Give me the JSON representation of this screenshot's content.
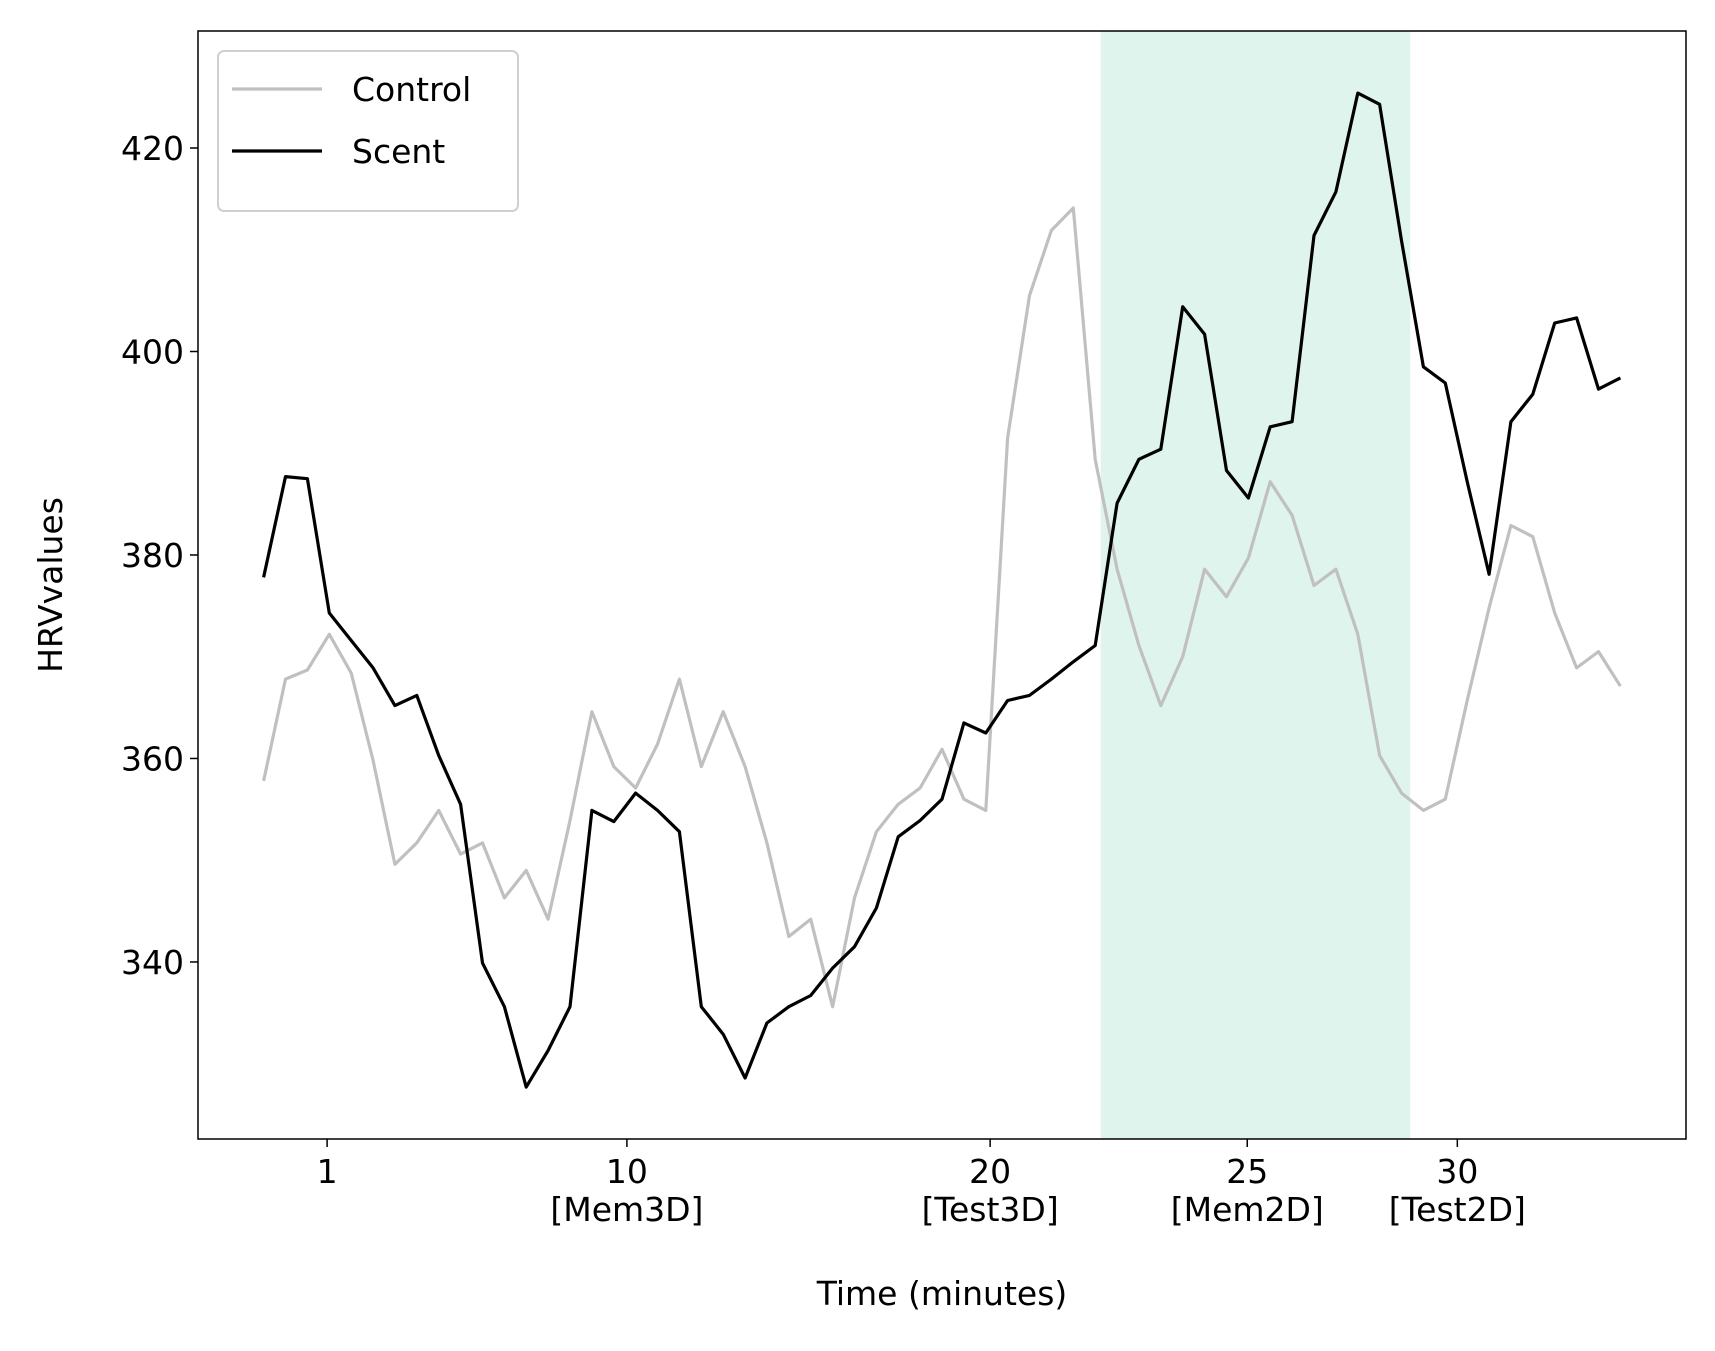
{
  "chart_data": {
    "type": "line",
    "xlabel": "Time (minutes)",
    "ylabel": "HRVvalues",
    "x": [
      6,
      8,
      10,
      12,
      14,
      16,
      18,
      20,
      22,
      24,
      26,
      28,
      30,
      32,
      34,
      36,
      38,
      40,
      42,
      44,
      46,
      48,
      50,
      52,
      54,
      56,
      58,
      60,
      62,
      64,
      66,
      68,
      70,
      72,
      74,
      76,
      78,
      80,
      82,
      84,
      86,
      88,
      90,
      92,
      94,
      96,
      98,
      100,
      102,
      104,
      106,
      108,
      110,
      112,
      114,
      116,
      118,
      120,
      122,
      124,
      126,
      128,
      130
    ],
    "series": [
      {
        "name": "Control",
        "color": "#c0c0c0",
        "values": [
          357.8,
          367.8,
          368.7,
          372.2,
          368.4,
          359.8,
          349.6,
          351.7,
          354.9,
          350.6,
          351.7,
          346.3,
          349,
          344.2,
          353.9,
          364.6,
          359.2,
          357.1,
          361.4,
          367.8,
          359.2,
          364.6,
          359.2,
          351.7,
          342.5,
          344.2,
          335.6,
          346.3,
          352.8,
          355.5,
          357.1,
          360.9,
          356,
          354.9,
          391.5,
          405.5,
          411.9,
          414.1,
          389.4,
          378.6,
          371.1,
          365.2,
          370,
          378.6,
          375.9,
          379.7,
          387.2,
          383.9,
          377,
          378.6,
          372.2,
          360.3,
          356.6,
          354.9,
          356,
          365.7,
          374.8,
          382.9,
          381.8,
          374.3,
          368.9,
          370.5,
          367.1
        ]
      },
      {
        "name": "Scent",
        "color": "#000000",
        "values": [
          377.8,
          387.7,
          387.5,
          374.3,
          371.6,
          368.9,
          365.2,
          366.2,
          360.3,
          355.5,
          339.9,
          335.6,
          327.7,
          331.3,
          335.6,
          354.9,
          353.8,
          356.6,
          354.9,
          352.8,
          335.6,
          332.9,
          328.6,
          334,
          335.6,
          336.7,
          339.4,
          341.5,
          345.3,
          352.3,
          353.9,
          356,
          363.5,
          362.5,
          365.7,
          366.2,
          367.8,
          369.5,
          371.1,
          385.1,
          389.4,
          390.4,
          404.4,
          401.7,
          388.3,
          385.6,
          392.6,
          393.1,
          411.4,
          415.7,
          425.4,
          424.3,
          410.9,
          398.5,
          396.9,
          387.2,
          378.1,
          393.1,
          395.8,
          402.8,
          403.3,
          396.3,
          397.4
        ]
      }
    ],
    "xlim": [
      0,
      136
    ],
    "ylim": [
      322.6,
      431.5
    ],
    "xticks": [
      {
        "value": 11.8,
        "label": "1"
      },
      {
        "value": 39.2,
        "label": "10\n[Mem3D]"
      },
      {
        "value": 72.4,
        "label": "20\n[Test3D]"
      },
      {
        "value": 95.9,
        "label": "25\n[Mem2D]"
      },
      {
        "value": 115.1,
        "label": "30\n[Test2D]"
      }
    ],
    "yticks": [
      340,
      360,
      380,
      400,
      420
    ],
    "spans": [
      {
        "x0": 82.5,
        "x1": 110.8,
        "color": "#dff4ec"
      }
    ],
    "legend": "upper left",
    "grid": false
  }
}
